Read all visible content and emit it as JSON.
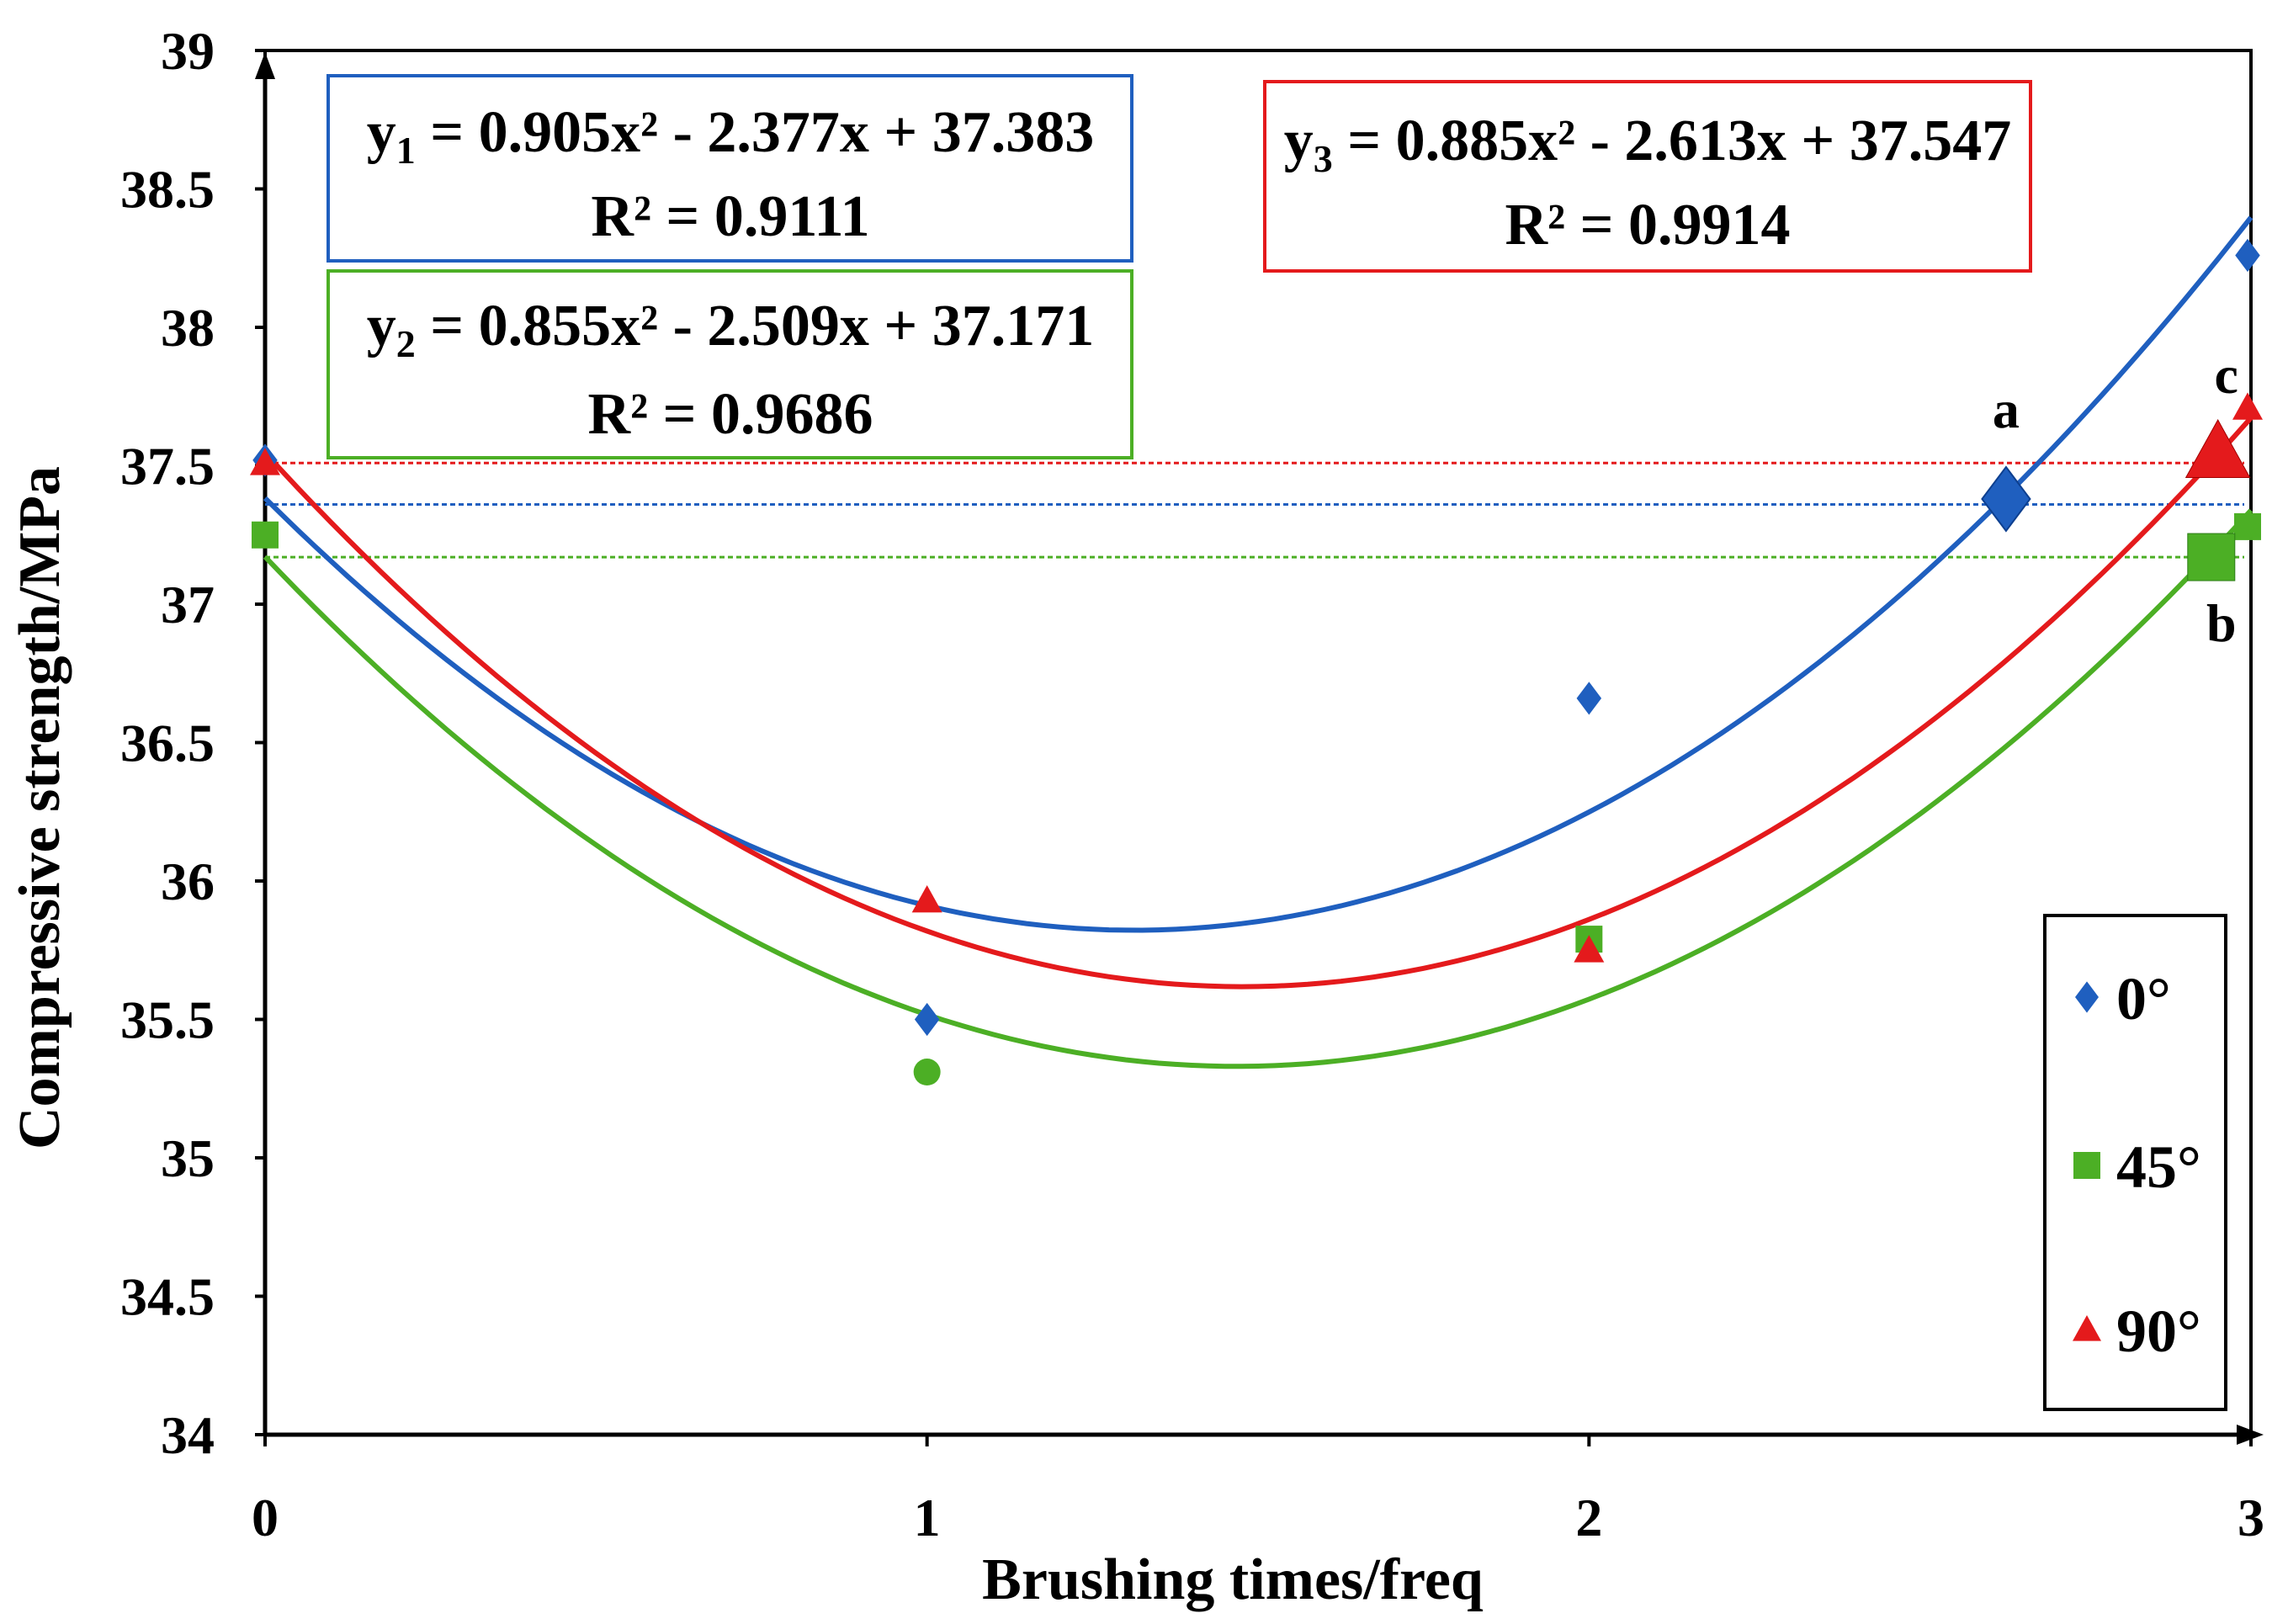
{
  "chart_data": {
    "type": "scatter",
    "xlabel": "Brushing times/freq",
    "ylabel": "Compressive strength/MPa",
    "xlim": [
      0,
      3
    ],
    "ylim": [
      34,
      39
    ],
    "x_ticks": [
      "0",
      "1",
      "2",
      "3"
    ],
    "y_ticks": [
      "34",
      "34.5",
      "35",
      "35.5",
      "36",
      "36.5",
      "37",
      "37.5",
      "38",
      "38.5",
      "39"
    ],
    "series": [
      {
        "name": "0°",
        "color": "#1f5fbf",
        "marker": "diamond",
        "x": [
          0,
          1,
          2,
          3
        ],
        "y": [
          37.52,
          35.5,
          36.66,
          38.26
        ],
        "fit": {
          "a": 0.905,
          "b": -2.377,
          "c": 37.383
        },
        "equation_label": "y",
        "equation_sub": "1",
        "equation_rest": " = 0.905x² - 2.377x + 37.383",
        "r2_label": "R² = 0.9111",
        "reference_level": 37.36,
        "key_point": {
          "label": "a",
          "x": 2.63,
          "y": 37.38
        }
      },
      {
        "name": "45°",
        "color": "#4caf25",
        "marker": "square",
        "x": [
          0,
          1,
          2,
          3
        ],
        "y": [
          37.25,
          35.31,
          35.79,
          37.28
        ],
        "fit": {
          "a": 0.855,
          "b": -2.509,
          "c": 37.171
        },
        "equation_label": "y",
        "equation_sub": "2",
        "equation_rest": " = 0.855x² - 2.509x + 37.171",
        "r2_label": "R² = 0.9686",
        "reference_level": 37.17,
        "key_point": {
          "label": "b",
          "x": 2.94,
          "y": 37.17
        }
      },
      {
        "name": "90°",
        "color": "#e41a1c",
        "marker": "triangle",
        "x": [
          0,
          1,
          2,
          3
        ],
        "y": [
          37.51,
          35.93,
          35.75,
          37.71
        ],
        "fit": {
          "a": 0.885,
          "b": -2.613,
          "c": 37.547
        },
        "equation_label": "y",
        "equation_sub": "3",
        "equation_rest": " = 0.885x² - 2.613x + 37.547",
        "r2_label": "R² = 0.9914",
        "reference_level": 37.51,
        "key_point": {
          "label": "c",
          "x": 2.95,
          "y": 37.55
        }
      }
    ],
    "legend_position": "right-bottom"
  }
}
